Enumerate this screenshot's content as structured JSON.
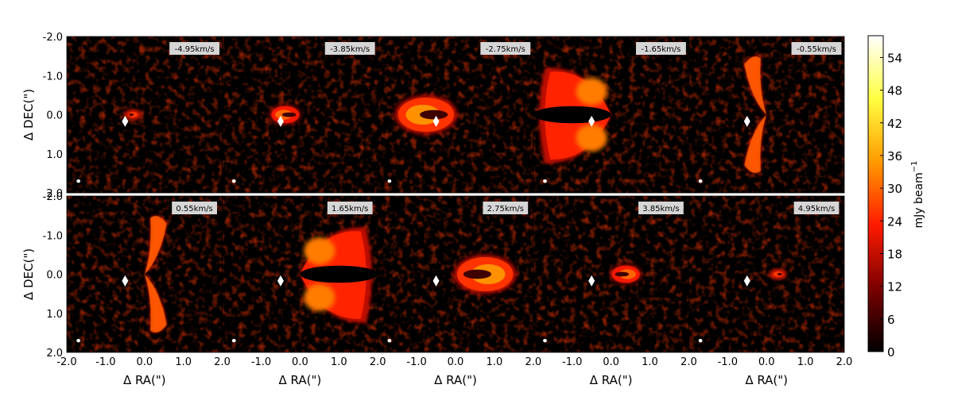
{
  "chart_data": {
    "type": "heatmap",
    "layout": {
      "rows": 2,
      "cols": 5
    },
    "xlabel": "Δ RA(\")",
    "ylabel": "Δ DEC(\")",
    "xlim": [
      -2.0,
      2.0
    ],
    "ylim": [
      -2.0,
      2.0
    ],
    "y_inverted": true,
    "x_ticks": [
      "-2.0",
      "-1.0",
      "0.0",
      "1.0",
      "2.0"
    ],
    "y_ticks": [
      "-2.0",
      "-1.0",
      "0.0",
      "1.0",
      "2.0"
    ],
    "panels": [
      {
        "velocity": "-4.95km/s",
        "emission": "compact",
        "side": "west",
        "extent": 0.4,
        "peak": 26
      },
      {
        "velocity": "-3.85km/s",
        "emission": "ring",
        "side": "west",
        "extent": 0.8,
        "peak": 30
      },
      {
        "velocity": "-2.75km/s",
        "emission": "ring",
        "side": "west",
        "extent": 1.6,
        "peak": 34
      },
      {
        "velocity": "-1.65km/s",
        "emission": "bowl",
        "side": "west",
        "extent": 2.0,
        "peak": 32
      },
      {
        "velocity": "-0.55km/s",
        "emission": "wings",
        "side": "west",
        "extent": 0.8,
        "peak": 30
      },
      {
        "velocity": "0.55km/s",
        "emission": "wings",
        "side": "east",
        "extent": 0.8,
        "peak": 30
      },
      {
        "velocity": "1.65km/s",
        "emission": "bowl",
        "side": "east",
        "extent": 2.0,
        "peak": 32
      },
      {
        "velocity": "2.75km/s",
        "emission": "ring",
        "side": "east",
        "extent": 1.6,
        "peak": 34
      },
      {
        "velocity": "3.85km/s",
        "emission": "ring",
        "side": "east",
        "extent": 0.8,
        "peak": 30
      },
      {
        "velocity": "4.95km/s",
        "emission": "compact",
        "side": "east",
        "extent": 0.4,
        "peak": 26
      }
    ],
    "star_marker": {
      "shape": "diamond",
      "ra": -0.5,
      "dec": 0.17,
      "color": "#ffffff"
    },
    "beam_marker": {
      "ra": -1.7,
      "dec": 1.7,
      "color": "#ffffff"
    },
    "colorbar": {
      "label": "mJy beam",
      "label_exponent": "−1",
      "ticks": [
        "0",
        "6",
        "12",
        "18",
        "24",
        "30",
        "36",
        "42",
        "48",
        "54"
      ],
      "range": [
        0,
        58
      ],
      "colormap": "afmhot",
      "colormap_stops": [
        "#000000",
        "#7a0000",
        "#ff1a00",
        "#ff9a00",
        "#ffff40",
        "#ffffff"
      ]
    }
  }
}
